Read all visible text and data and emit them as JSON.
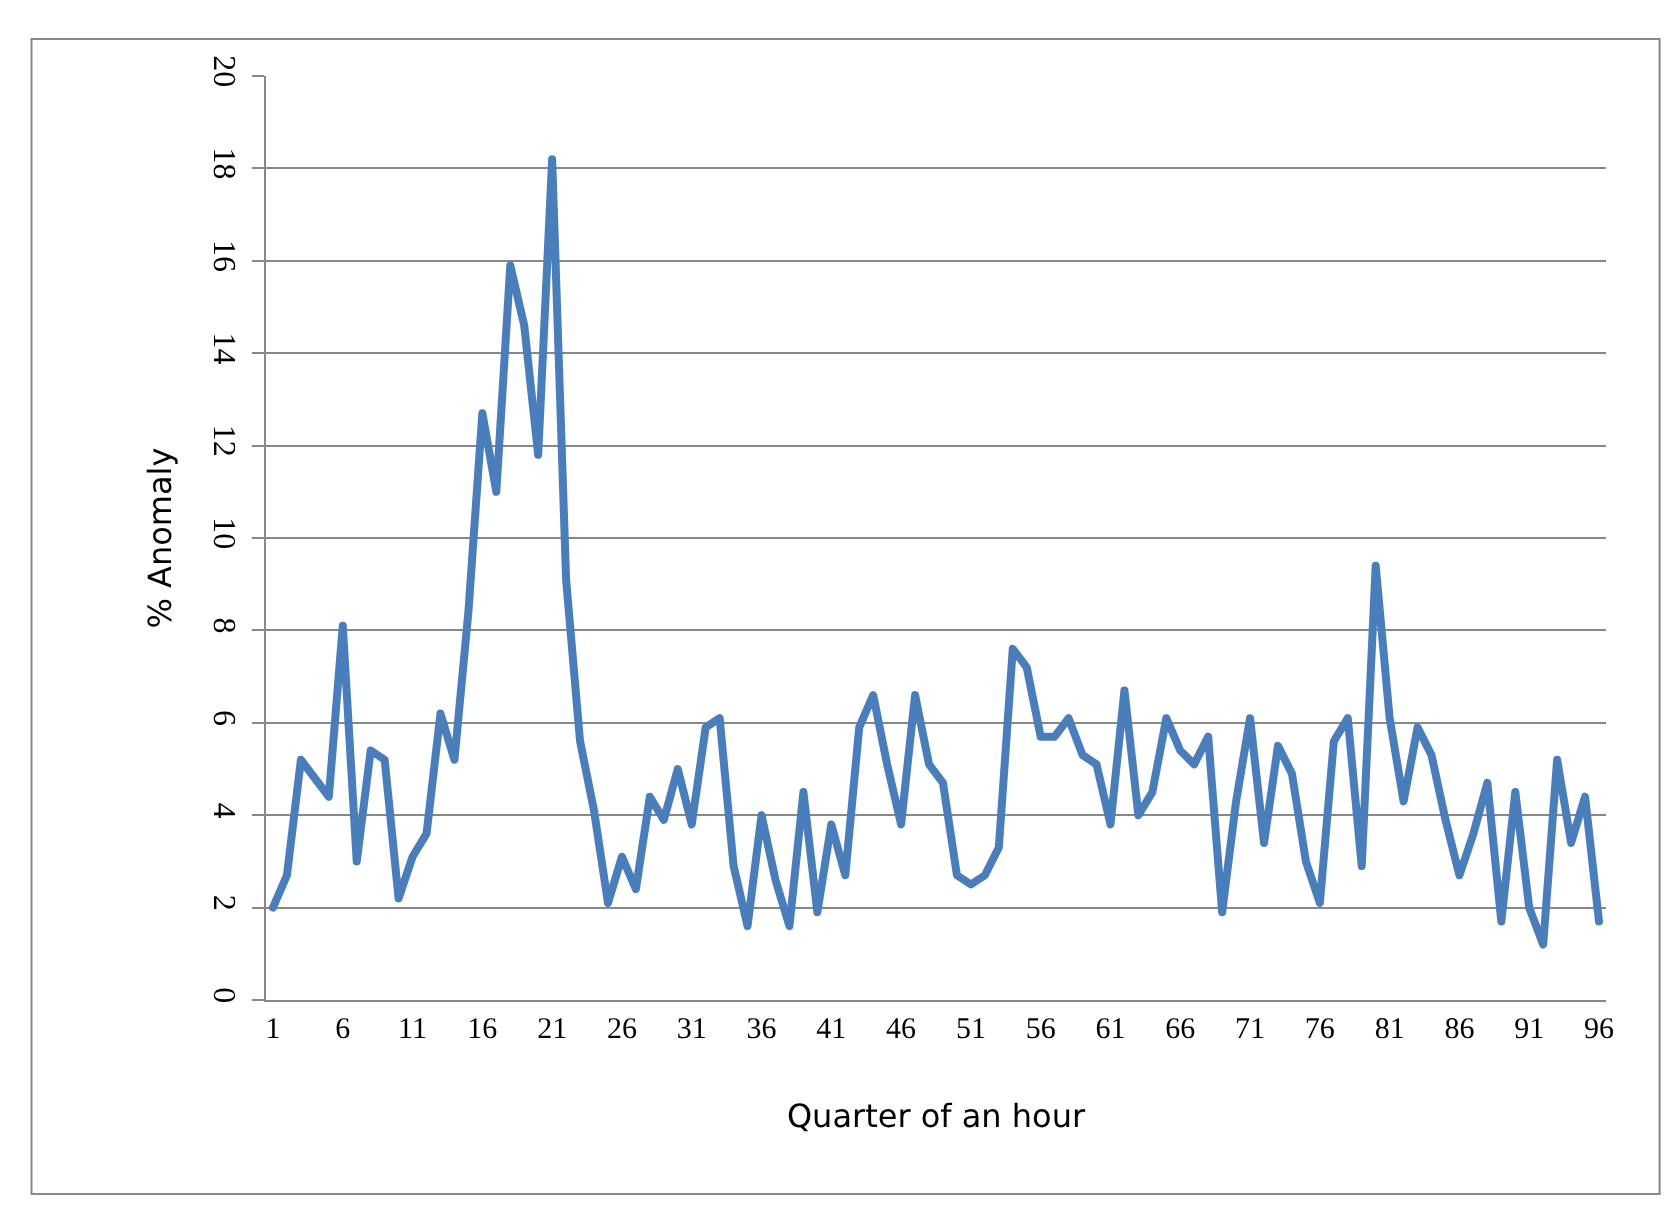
{
  "chart_data": {
    "type": "line",
    "xlabel": "Quarter of an hour",
    "ylabel": "% Anomaly",
    "x": [
      1,
      2,
      3,
      4,
      5,
      6,
      7,
      8,
      9,
      10,
      11,
      12,
      13,
      14,
      15,
      16,
      17,
      18,
      19,
      20,
      21,
      22,
      23,
      24,
      25,
      26,
      27,
      28,
      29,
      30,
      31,
      32,
      33,
      34,
      35,
      36,
      37,
      38,
      39,
      40,
      41,
      42,
      43,
      44,
      45,
      46,
      47,
      48,
      49,
      50,
      51,
      52,
      53,
      54,
      55,
      56,
      57,
      58,
      59,
      60,
      61,
      62,
      63,
      64,
      65,
      66,
      67,
      68,
      69,
      70,
      71,
      72,
      73,
      74,
      75,
      76,
      77,
      78,
      79,
      80,
      81,
      82,
      83,
      84,
      85,
      86,
      87,
      88,
      89,
      90,
      91,
      92,
      93,
      94,
      95,
      96
    ],
    "values": [
      2.0,
      2.7,
      5.2,
      4.8,
      4.4,
      8.1,
      3.0,
      5.4,
      5.2,
      2.2,
      3.1,
      3.6,
      6.2,
      5.2,
      8.4,
      12.7,
      11.0,
      15.9,
      14.6,
      11.8,
      18.2,
      9.1,
      5.6,
      4.1,
      2.1,
      3.1,
      2.4,
      4.4,
      3.9,
      5.0,
      3.8,
      5.9,
      6.1,
      2.9,
      1.6,
      4.0,
      2.6,
      1.6,
      4.5,
      1.9,
      3.8,
      2.7,
      5.9,
      6.6,
      5.1,
      3.8,
      6.6,
      5.1,
      4.7,
      2.7,
      2.5,
      2.7,
      3.3,
      7.6,
      7.2,
      5.7,
      5.7,
      6.1,
      5.3,
      5.1,
      3.8,
      6.7,
      4.0,
      4.5,
      6.1,
      5.4,
      5.1,
      5.7,
      1.9,
      4.3,
      6.1,
      3.4,
      5.5,
      4.9,
      3.0,
      2.1,
      5.6,
      6.1,
      2.9,
      9.4,
      6.1,
      4.3,
      5.9,
      5.3,
      3.9,
      2.7,
      3.6,
      4.7,
      1.7,
      4.5,
      2.0,
      1.2,
      5.2,
      3.4,
      4.4,
      1.7
    ],
    "color": "#4a7ebb",
    "line_style": "solid",
    "marker": "none",
    "xlim": [
      0.5,
      96.5
    ],
    "xticks": [
      1,
      6,
      11,
      16,
      21,
      26,
      31,
      36,
      41,
      46,
      51,
      56,
      61,
      66,
      71,
      76,
      81,
      86,
      91,
      96
    ],
    "ylim": [
      0,
      20
    ],
    "yticks": [
      0,
      2,
      4,
      6,
      8,
      10,
      12,
      14,
      16,
      18,
      20
    ],
    "grid": "y"
  }
}
